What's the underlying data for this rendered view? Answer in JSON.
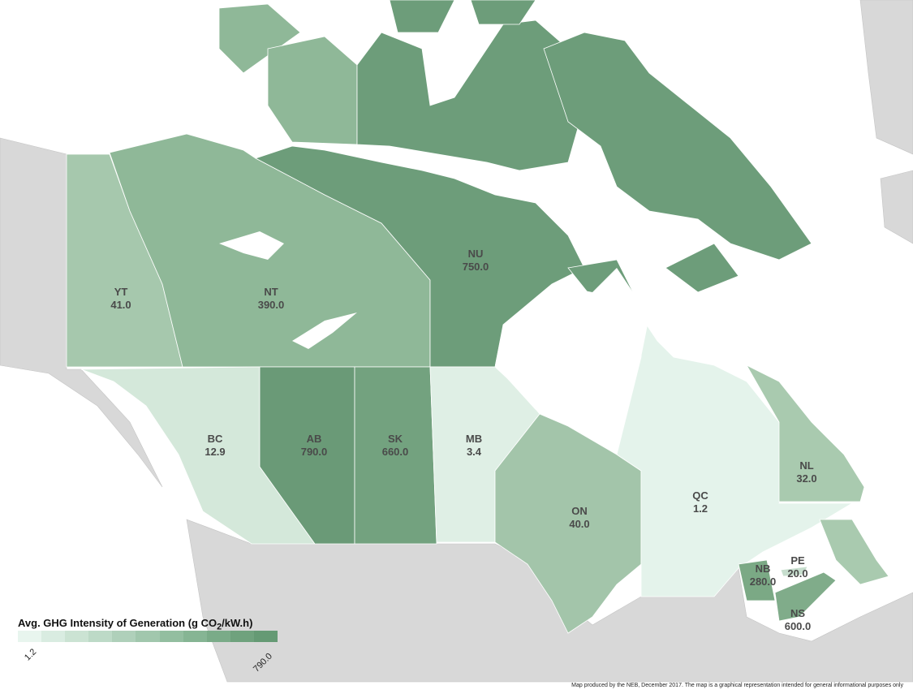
{
  "legend": {
    "title_prefix": "Avg. GHG Intensity of Generation (g CO",
    "title_sub": "2",
    "title_suffix": "/kW.h)",
    "min_label": "1.2",
    "max_label": "790.0",
    "scale_colors": [
      "#e8f5ee",
      "#d9ece1",
      "#cbe3d3",
      "#bddac7",
      "#afd0ba",
      "#a1c7ad",
      "#93bea0",
      "#86b594",
      "#7aab88",
      "#6fa27d",
      "#659a74"
    ]
  },
  "regions": [
    {
      "code": "YT",
      "value": "41.0",
      "color": "#a6c8ad"
    },
    {
      "code": "NT",
      "value": "390.0",
      "color": "#8fb898"
    },
    {
      "code": "NU",
      "value": "750.0",
      "color": "#6d9d7a"
    },
    {
      "code": "BC",
      "value": "12.9",
      "color": "#d4e8da"
    },
    {
      "code": "AB",
      "value": "790.0",
      "color": "#6a9a77"
    },
    {
      "code": "SK",
      "value": "660.0",
      "color": "#73a27f"
    },
    {
      "code": "MB",
      "value": "3.4",
      "color": "#dfefe5"
    },
    {
      "code": "ON",
      "value": "40.0",
      "color": "#a3c5aa"
    },
    {
      "code": "QC",
      "value": "1.2",
      "color": "#e4f3eb"
    },
    {
      "code": "NL",
      "value": "32.0",
      "color": "#a9caaf"
    },
    {
      "code": "NB",
      "value": "280.0",
      "color": "#7ba985"
    },
    {
      "code": "PE",
      "value": "20.0",
      "color": "#c7dece"
    },
    {
      "code": "NS",
      "value": "600.0",
      "color": "#80ac8a"
    }
  ],
  "colors": {
    "land_outside": "#d8d8d8",
    "water": "#ffffff"
  },
  "footer": "Map produced by the NEB, December 2017. The map is a graphical representation intended for general informational purposes only"
}
